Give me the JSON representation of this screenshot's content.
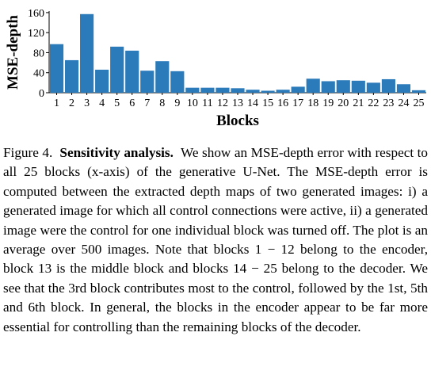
{
  "chart_data": {
    "type": "bar",
    "ylabel": "MSE-depth",
    "xlabel": "Blocks",
    "categories": [
      "1",
      "2",
      "3",
      "4",
      "5",
      "6",
      "7",
      "8",
      "9",
      "10",
      "11",
      "12",
      "13",
      "14",
      "15",
      "16",
      "17",
      "18",
      "19",
      "20",
      "21",
      "22",
      "23",
      "24",
      "25"
    ],
    "values": [
      97,
      65,
      157,
      46,
      92,
      84,
      44,
      63,
      43,
      10,
      10,
      10,
      9,
      6,
      4,
      6,
      12,
      28,
      23,
      25,
      24,
      20,
      27,
      17,
      5
    ],
    "color": "#2b7bba",
    "ylim": [
      0,
      163
    ],
    "yticks": [
      0,
      40,
      80,
      120,
      160
    ]
  },
  "caption": {
    "label": "Figure 4.",
    "title": "Sensitivity analysis.",
    "text": "We show an MSE-depth error with respect to all 25 blocks (x-axis) of the generative U-Net. The MSE-depth error is computed between the extracted depth maps of two generated images: i) a generated image for which all control connections were active, ii) a generated image were the control for one individual block was turned off. The plot is an average over 500 images. Note that blocks 1 − 12 belong to the encoder, block 13 is the middle block and blocks 14 − 25 belong to the decoder. We see that the 3rd block contributes most to the control, followed by the 1st, 5th and 6th block. In general, the blocks in the encoder appear to be far more essential for controlling than the remaining blocks of the decoder."
  }
}
